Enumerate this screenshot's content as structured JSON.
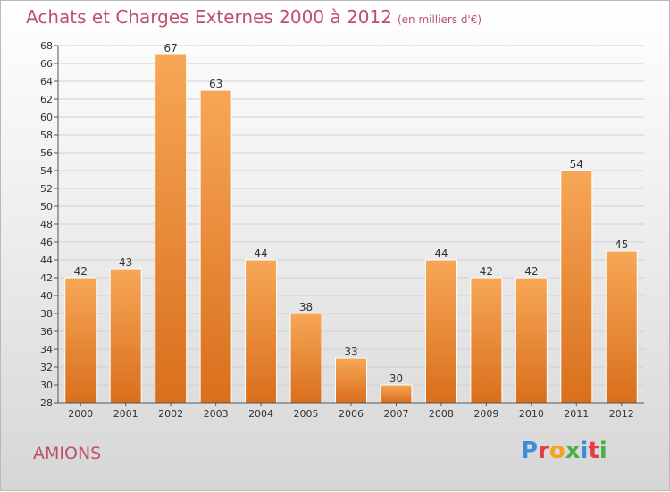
{
  "header": {
    "title": "Achats et Charges Externes 2000 à 2012",
    "unit": "(en milliers d'€)"
  },
  "footer": {
    "town": "AMIONS",
    "logo": "Proxiti"
  },
  "colors": {
    "title": "#c0506a",
    "bar_light": "#f7a757",
    "bar_dark": "#d96f1c",
    "logo_p": "#3a8fd9",
    "logo_r": "#e63e3e",
    "logo_o": "#f2a51a",
    "logo_x": "#4bb04a",
    "logo_i": "#3a8fd9",
    "logo_t": "#e63e3e",
    "logo_i2": "#4bb04a"
  },
  "chart_data": {
    "type": "bar",
    "categories": [
      "2000",
      "2001",
      "2002",
      "2003",
      "2004",
      "2005",
      "2006",
      "2007",
      "2008",
      "2009",
      "2010",
      "2011",
      "2012"
    ],
    "values": [
      42,
      43,
      67,
      63,
      44,
      38,
      33,
      30,
      44,
      42,
      42,
      54,
      45
    ],
    "data_labels": [
      "42",
      "43",
      "67",
      "63",
      "44",
      "38",
      "33",
      "30",
      "44",
      "42",
      "42",
      "54",
      "45"
    ],
    "ylim": [
      28,
      68
    ],
    "yticks": [
      28,
      30,
      32,
      34,
      36,
      38,
      40,
      42,
      44,
      46,
      48,
      50,
      52,
      54,
      56,
      58,
      60,
      62,
      64,
      66,
      68
    ],
    "grid": true
  }
}
